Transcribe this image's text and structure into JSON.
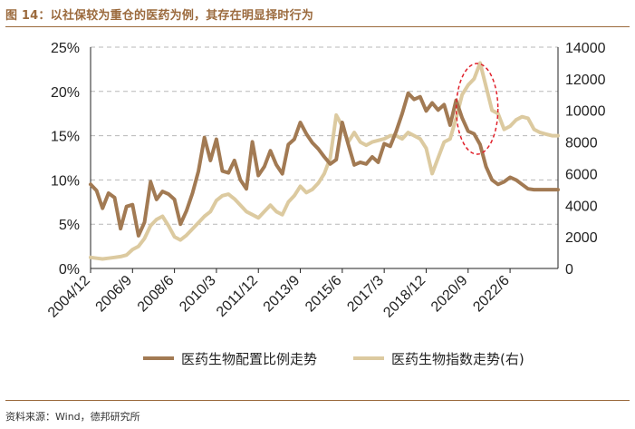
{
  "figure": {
    "title": "图 14：以社保较为重仓的医药为例，其存在明显择时行为",
    "source": "资料来源：Wind，德邦研究所"
  },
  "chart_data": {
    "type": "line",
    "title": "图 14：以社保较为重仓的医药为例，其存在明显择时行为",
    "x_tick_labels": [
      "2004/12",
      "2006/9",
      "2008/6",
      "2010/3",
      "2011/12",
      "2013/9",
      "2015/6",
      "2017/3",
      "2018/12",
      "2020/9",
      "2022/6"
    ],
    "x_range": [
      "2004-12",
      "2024-06"
    ],
    "y_left": {
      "ticks": [
        "0%",
        "5%",
        "10%",
        "15%",
        "20%",
        "25%"
      ],
      "range": [
        0,
        25
      ],
      "unit": "%"
    },
    "y_right": {
      "ticks": [
        "0",
        "2000",
        "4000",
        "6000",
        "8000",
        "10000",
        "12000",
        "14000"
      ],
      "range": [
        0,
        14000
      ]
    },
    "grid": "horizontal dashed",
    "legend_position": "bottom",
    "colors": {
      "allocation": "#a27a53",
      "index": "#dccaa0",
      "annotation": "#e0202a",
      "title": "#9b6a3d"
    },
    "annotation": "red dashed ellipse around 2020/9 – 2021/3 peak",
    "series": [
      {
        "name": "医药生物配置比例走势",
        "axis": "left",
        "x": [
          "2004-12",
          "2005-03",
          "2005-06",
          "2005-09",
          "2005-12",
          "2006-03",
          "2006-06",
          "2006-09",
          "2006-12",
          "2007-03",
          "2007-06",
          "2007-09",
          "2007-12",
          "2008-03",
          "2008-06",
          "2008-09",
          "2008-12",
          "2009-03",
          "2009-06",
          "2009-09",
          "2009-12",
          "2010-03",
          "2010-06",
          "2010-09",
          "2010-12",
          "2011-03",
          "2011-06",
          "2011-09",
          "2011-12",
          "2012-03",
          "2012-06",
          "2012-09",
          "2012-12",
          "2013-03",
          "2013-06",
          "2013-09",
          "2013-12",
          "2014-03",
          "2014-06",
          "2014-09",
          "2014-12",
          "2015-03",
          "2015-06",
          "2015-09",
          "2015-12",
          "2016-03",
          "2016-06",
          "2016-09",
          "2016-12",
          "2017-03",
          "2017-06",
          "2017-09",
          "2017-12",
          "2018-03",
          "2018-06",
          "2018-09",
          "2018-12",
          "2019-03",
          "2019-06",
          "2019-09",
          "2019-12",
          "2020-03",
          "2020-06",
          "2020-09",
          "2020-12",
          "2021-03",
          "2021-06",
          "2021-09",
          "2021-12",
          "2022-03",
          "2022-06",
          "2022-09",
          "2022-12",
          "2023-03",
          "2023-06",
          "2023-09",
          "2023-12",
          "2024-03",
          "2024-06"
        ],
        "values": [
          9.5,
          8.8,
          6.8,
          8.5,
          8.0,
          4.5,
          7.0,
          7.2,
          3.7,
          5.2,
          9.8,
          7.8,
          8.7,
          8.4,
          7.8,
          5.0,
          6.5,
          8.5,
          11.0,
          14.8,
          12.2,
          14.6,
          11.0,
          10.8,
          12.2,
          10.0,
          9.0,
          14.3,
          10.5,
          11.5,
          13.3,
          11.7,
          10.7,
          14.0,
          14.6,
          16.5,
          15.2,
          14.2,
          13.5,
          12.6,
          11.8,
          12.3,
          16.5,
          14.0,
          11.7,
          12.0,
          11.8,
          12.6,
          12.0,
          14.1,
          13.8,
          15.5,
          17.5,
          19.8,
          19.1,
          19.4,
          17.8,
          18.7,
          17.9,
          18.5,
          16.2,
          19.0,
          17.0,
          15.5,
          15.2,
          14.0,
          11.5,
          10.0,
          9.5,
          9.8,
          10.3,
          10.0,
          9.5,
          9.0,
          8.9,
          8.9,
          8.9,
          8.9,
          8.9
        ]
      },
      {
        "name": "医药生物指数走势(右)",
        "axis": "right",
        "x": [
          "2004-12",
          "2005-03",
          "2005-06",
          "2005-09",
          "2005-12",
          "2006-03",
          "2006-06",
          "2006-09",
          "2006-12",
          "2007-03",
          "2007-06",
          "2007-09",
          "2007-12",
          "2008-03",
          "2008-06",
          "2008-09",
          "2008-12",
          "2009-03",
          "2009-06",
          "2009-09",
          "2009-12",
          "2010-03",
          "2010-06",
          "2010-09",
          "2010-12",
          "2011-03",
          "2011-06",
          "2011-09",
          "2011-12",
          "2012-03",
          "2012-06",
          "2012-09",
          "2012-12",
          "2013-03",
          "2013-06",
          "2013-09",
          "2013-12",
          "2014-03",
          "2014-06",
          "2014-09",
          "2014-12",
          "2015-03",
          "2015-06",
          "2015-09",
          "2015-12",
          "2016-03",
          "2016-06",
          "2016-09",
          "2016-12",
          "2017-03",
          "2017-06",
          "2017-09",
          "2017-12",
          "2018-03",
          "2018-06",
          "2018-09",
          "2018-12",
          "2019-03",
          "2019-06",
          "2019-09",
          "2019-12",
          "2020-03",
          "2020-06",
          "2020-09",
          "2020-12",
          "2021-03",
          "2021-06",
          "2021-09",
          "2021-12",
          "2022-03",
          "2022-06",
          "2022-09",
          "2022-12",
          "2023-03",
          "2023-06",
          "2023-09",
          "2023-12",
          "2024-03",
          "2024-06"
        ],
        "values": [
          700,
          650,
          600,
          650,
          700,
          750,
          850,
          1200,
          1400,
          1900,
          2700,
          3100,
          3300,
          2700,
          2000,
          1800,
          2100,
          2500,
          2900,
          3300,
          3600,
          4300,
          4600,
          4700,
          4400,
          4000,
          3600,
          3400,
          3200,
          3600,
          4000,
          3600,
          3400,
          4200,
          4600,
          5200,
          4800,
          5000,
          5400,
          6000,
          7000,
          9700,
          9000,
          8000,
          8600,
          8000,
          7800,
          8000,
          8100,
          8200,
          8400,
          8400,
          8200,
          8600,
          8400,
          8200,
          7600,
          6000,
          7000,
          8000,
          8200,
          9500,
          11000,
          11600,
          12000,
          13000,
          11500,
          10000,
          9800,
          8800,
          9000,
          9400,
          9600,
          9500,
          8800,
          8600,
          8500,
          8400,
          8400
        ]
      }
    ]
  }
}
